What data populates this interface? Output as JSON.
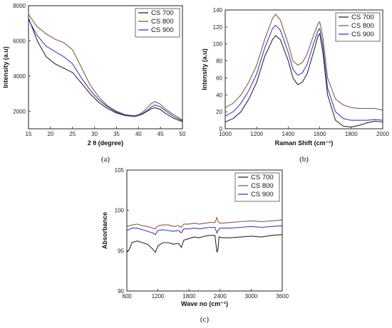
{
  "chart_data": [
    {
      "id": "a",
      "type": "line",
      "caption": "(a)",
      "xlabel": "2 θ (degree)",
      "ylabel": "Intensity (a.u)",
      "xlim": [
        15,
        50
      ],
      "ylim": [
        1000,
        8000
      ],
      "xticks": [
        15,
        20,
        25,
        30,
        35,
        40,
        45,
        50
      ],
      "yticks": [
        2000,
        4000,
        6000,
        8000
      ],
      "legend_position": "top-right",
      "grid": false,
      "series": [
        {
          "name": "CS 700",
          "color": "#2b2b2b",
          "points": [
            [
              15,
              7300
            ],
            [
              17,
              6000
            ],
            [
              19,
              5100
            ],
            [
              21,
              4700
            ],
            [
              23,
              4450
            ],
            [
              25,
              4200
            ],
            [
              27,
              3600
            ],
            [
              29,
              3000
            ],
            [
              31,
              2500
            ],
            [
              33,
              2150
            ],
            [
              35,
              1900
            ],
            [
              37,
              1750
            ],
            [
              39,
              1700
            ],
            [
              40,
              1750
            ],
            [
              41,
              1850
            ],
            [
              42,
              2000
            ],
            [
              43,
              2150
            ],
            [
              43.8,
              2200
            ],
            [
              45,
              2100
            ],
            [
              46,
              1900
            ],
            [
              48,
              1600
            ],
            [
              50,
              1400
            ]
          ]
        },
        {
          "name": "CS 800",
          "color": "#8b5a3c",
          "points": [
            [
              15,
              7500
            ],
            [
              17,
              6800
            ],
            [
              19,
              6400
            ],
            [
              21,
              6100
            ],
            [
              23,
              5900
            ],
            [
              25,
              5500
            ],
            [
              27,
              4500
            ],
            [
              29,
              3500
            ],
            [
              31,
              2800
            ],
            [
              33,
              2300
            ],
            [
              35,
              2000
            ],
            [
              37,
              1800
            ],
            [
              39,
              1750
            ],
            [
              40,
              1800
            ],
            [
              41,
              1950
            ],
            [
              42,
              2200
            ],
            [
              43,
              2450
            ],
            [
              43.8,
              2550
            ],
            [
              45,
              2400
            ],
            [
              46,
              2150
            ],
            [
              48,
              1800
            ],
            [
              50,
              1500
            ]
          ]
        },
        {
          "name": "CS 900",
          "color": "#3b3bc8",
          "points": [
            [
              15,
              7200
            ],
            [
              17,
              6300
            ],
            [
              19,
              5700
            ],
            [
              21,
              5400
            ],
            [
              23,
              5100
            ],
            [
              25,
              4700
            ],
            [
              27,
              3900
            ],
            [
              29,
              3200
            ],
            [
              31,
              2650
            ],
            [
              33,
              2250
            ],
            [
              35,
              1950
            ],
            [
              37,
              1780
            ],
            [
              39,
              1720
            ],
            [
              40,
              1770
            ],
            [
              41,
              1880
            ],
            [
              42,
              2050
            ],
            [
              43,
              2250
            ],
            [
              43.8,
              2350
            ],
            [
              45,
              2250
            ],
            [
              46,
              2050
            ],
            [
              48,
              1700
            ],
            [
              50,
              1450
            ]
          ]
        }
      ]
    },
    {
      "id": "b",
      "type": "line",
      "caption": "(b)",
      "xlabel": "Raman Shift (cm⁻¹)",
      "ylabel": "Intensity (a.u)",
      "xlim": [
        1000,
        2000
      ],
      "ylim": [
        0,
        140
      ],
      "xticks": [
        1000,
        1200,
        1400,
        1600,
        1800,
        2000
      ],
      "yticks": [
        0,
        20,
        40,
        60,
        80,
        100,
        120,
        140
      ],
      "legend_position": "top-right",
      "grid": false,
      "series": [
        {
          "name": "CS 700",
          "color": "#2b2b2b",
          "points": [
            [
              1000,
              8
            ],
            [
              1050,
              12
            ],
            [
              1100,
              20
            ],
            [
              1150,
              35
            ],
            [
              1200,
              55
            ],
            [
              1250,
              85
            ],
            [
              1300,
              105
            ],
            [
              1320,
              110
            ],
            [
              1350,
              105
            ],
            [
              1400,
              80
            ],
            [
              1430,
              60
            ],
            [
              1460,
              52
            ],
            [
              1490,
              55
            ],
            [
              1520,
              65
            ],
            [
              1560,
              90
            ],
            [
              1590,
              110
            ],
            [
              1600,
              112
            ],
            [
              1620,
              90
            ],
            [
              1650,
              40
            ],
            [
              1700,
              10
            ],
            [
              1750,
              3
            ],
            [
              1800,
              2
            ],
            [
              1850,
              4
            ],
            [
              1900,
              7
            ],
            [
              1950,
              9
            ],
            [
              2000,
              8
            ]
          ]
        },
        {
          "name": "CS 800",
          "color": "#8b5a3c",
          "points": [
            [
              1000,
              25
            ],
            [
              1050,
              30
            ],
            [
              1100,
              40
            ],
            [
              1150,
              55
            ],
            [
              1200,
              75
            ],
            [
              1250,
              105
            ],
            [
              1300,
              130
            ],
            [
              1320,
              135
            ],
            [
              1350,
              128
            ],
            [
              1400,
              100
            ],
            [
              1430,
              80
            ],
            [
              1460,
              75
            ],
            [
              1490,
              78
            ],
            [
              1520,
              88
            ],
            [
              1560,
              110
            ],
            [
              1590,
              124
            ],
            [
              1600,
              126
            ],
            [
              1620,
              108
            ],
            [
              1650,
              60
            ],
            [
              1700,
              35
            ],
            [
              1750,
              28
            ],
            [
              1800,
              25
            ],
            [
              1850,
              24
            ],
            [
              1900,
              24
            ],
            [
              1950,
              24
            ],
            [
              2000,
              22
            ]
          ]
        },
        {
          "name": "CS 900",
          "color": "#3b3bc8",
          "points": [
            [
              1000,
              15
            ],
            [
              1050,
              20
            ],
            [
              1100,
              30
            ],
            [
              1150,
              45
            ],
            [
              1200,
              65
            ],
            [
              1250,
              95
            ],
            [
              1300,
              118
            ],
            [
              1320,
              122
            ],
            [
              1350,
              116
            ],
            [
              1400,
              90
            ],
            [
              1430,
              70
            ],
            [
              1460,
              63
            ],
            [
              1490,
              66
            ],
            [
              1520,
              76
            ],
            [
              1560,
              100
            ],
            [
              1590,
              116
            ],
            [
              1600,
              118
            ],
            [
              1620,
              98
            ],
            [
              1650,
              48
            ],
            [
              1700,
              20
            ],
            [
              1750,
              12
            ],
            [
              1800,
              10
            ],
            [
              1850,
              10
            ],
            [
              1900,
              10
            ],
            [
              1950,
              11
            ],
            [
              2000,
              10
            ]
          ]
        }
      ]
    },
    {
      "id": "c",
      "type": "line",
      "caption": "(c)",
      "xlabel": "Wave no (cm⁻¹)",
      "ylabel": "Absorbance",
      "xlim": [
        600,
        3600
      ],
      "ylim": [
        90,
        105
      ],
      "xticks": [
        600,
        1200,
        1800,
        2400,
        3000,
        3600
      ],
      "yticks": [
        90,
        95,
        100,
        105
      ],
      "legend_position": "top-right",
      "grid": false,
      "series": [
        {
          "name": "CS 700",
          "color": "#2b2b2b",
          "points": [
            [
              600,
              94.8
            ],
            [
              650,
              95.2
            ],
            [
              700,
              96
            ],
            [
              800,
              96.2
            ],
            [
              900,
              96
            ],
            [
              1000,
              95.8
            ],
            [
              1100,
              95.2
            ],
            [
              1150,
              94.8
            ],
            [
              1200,
              95.6
            ],
            [
              1300,
              96
            ],
            [
              1400,
              96
            ],
            [
              1500,
              95.8
            ],
            [
              1600,
              95.9
            ],
            [
              1650,
              95.4
            ],
            [
              1700,
              96.3
            ],
            [
              1800,
              96.5
            ],
            [
              1900,
              96.7
            ],
            [
              2000,
              96.6
            ],
            [
              2100,
              96.8
            ],
            [
              2200,
              96.9
            ],
            [
              2300,
              96.9
            ],
            [
              2340,
              94.8
            ],
            [
              2360,
              95.2
            ],
            [
              2380,
              96.7
            ],
            [
              2450,
              96.6
            ],
            [
              2600,
              96.6
            ],
            [
              2800,
              96.7
            ],
            [
              3000,
              96.8
            ],
            [
              3200,
              96.7
            ],
            [
              3400,
              96.9
            ],
            [
              3600,
              97.0
            ]
          ]
        },
        {
          "name": "CS 800",
          "color": "#8b5a3c",
          "points": [
            [
              600,
              98
            ],
            [
              700,
              98.2
            ],
            [
              800,
              98.3
            ],
            [
              900,
              98.1
            ],
            [
              1000,
              98.0
            ],
            [
              1100,
              97.8
            ],
            [
              1150,
              97.7
            ],
            [
              1200,
              98.1
            ],
            [
              1300,
              98.2
            ],
            [
              1400,
              98.2
            ],
            [
              1500,
              98.0
            ],
            [
              1600,
              98.1
            ],
            [
              1650,
              97.9
            ],
            [
              1700,
              98.3
            ],
            [
              1800,
              98.3
            ],
            [
              1900,
              98.4
            ],
            [
              2000,
              98.3
            ],
            [
              2100,
              98.4
            ],
            [
              2200,
              98.5
            ],
            [
              2300,
              98.5
            ],
            [
              2340,
              99.1
            ],
            [
              2360,
              98.6
            ],
            [
              2400,
              98.4
            ],
            [
              2600,
              98.5
            ],
            [
              2800,
              98.6
            ],
            [
              3000,
              98.7
            ],
            [
              3200,
              98.6
            ],
            [
              3400,
              98.7
            ],
            [
              3600,
              98.8
            ]
          ]
        },
        {
          "name": "CS 900",
          "color": "#3b3bc8",
          "points": [
            [
              600,
              97.5
            ],
            [
              700,
              97.8
            ],
            [
              800,
              97.8
            ],
            [
              900,
              97.6
            ],
            [
              1000,
              97.4
            ],
            [
              1100,
              97.2
            ],
            [
              1150,
              97.0
            ],
            [
              1200,
              97.5
            ],
            [
              1300,
              97.6
            ],
            [
              1400,
              97.5
            ],
            [
              1500,
              97.4
            ],
            [
              1600,
              97.5
            ],
            [
              1650,
              97.2
            ],
            [
              1700,
              97.7
            ],
            [
              1800,
              97.7
            ],
            [
              1900,
              97.8
            ],
            [
              2000,
              97.7
            ],
            [
              2100,
              97.8
            ],
            [
              2200,
              97.9
            ],
            [
              2300,
              97.9
            ],
            [
              2340,
              97.2
            ],
            [
              2360,
              97.5
            ],
            [
              2400,
              97.8
            ],
            [
              2600,
              97.8
            ],
            [
              2800,
              97.9
            ],
            [
              3000,
              98.0
            ],
            [
              3200,
              97.9
            ],
            [
              3400,
              98.0
            ],
            [
              3600,
              98.1
            ]
          ]
        }
      ]
    }
  ]
}
